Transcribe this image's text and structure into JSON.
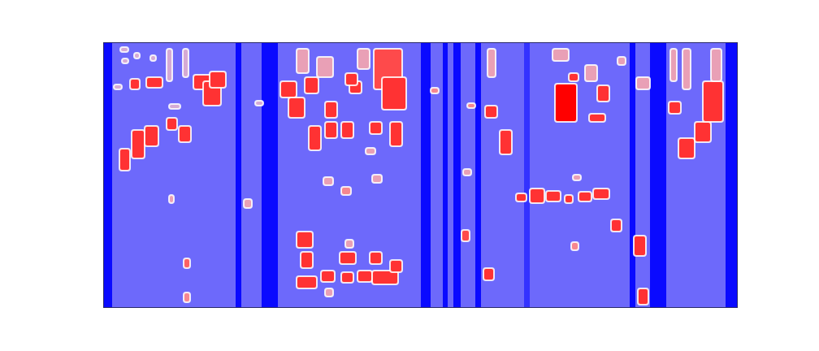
{
  "chart_data": {
    "type": "heatmap",
    "xlim": [
      0,
      78
    ],
    "ylim": [
      0,
      32.6
    ],
    "tick_labels": false,
    "color_range": [
      0,
      1
    ],
    "cells": [
      [
        0,
        78,
        0,
        32.6,
        0.22
      ],
      [
        0,
        1.1,
        0,
        32.6,
        0.02
      ],
      [
        16.3,
        17.0,
        0,
        32.6,
        0.02
      ],
      [
        19.5,
        21.5,
        0,
        32.6,
        0.02
      ],
      [
        39.1,
        40.3,
        0,
        32.6,
        0.02
      ],
      [
        41.8,
        42.4,
        0,
        32.6,
        0.02
      ],
      [
        43.1,
        44.0,
        0,
        32.6,
        0.02
      ],
      [
        45.8,
        46.5,
        0,
        32.6,
        0.02
      ],
      [
        51.8,
        52.5,
        0,
        32.6,
        0.1
      ],
      [
        64.8,
        65.5,
        0,
        32.6,
        0.02
      ],
      [
        67.3,
        69.3,
        0,
        32.6,
        0.02
      ],
      [
        76.6,
        78,
        0,
        32.6,
        0.02
      ],
      [
        11.1,
        13.5,
        26.8,
        28.6,
        0.9
      ],
      [
        12.3,
        14.5,
        24.8,
        27.8,
        0.9
      ],
      [
        13.1,
        15.1,
        27.0,
        29.0,
        0.9
      ],
      [
        3.3,
        4.5,
        26.8,
        28.1,
        0.9
      ],
      [
        5.3,
        7.3,
        27.0,
        28.3,
        0.9
      ],
      [
        2.0,
        3.3,
        16.8,
        19.5,
        0.9
      ],
      [
        3.5,
        5.1,
        18.3,
        21.8,
        0.9
      ],
      [
        5.1,
        6.8,
        19.8,
        22.3,
        0.9
      ],
      [
        7.8,
        9.1,
        21.8,
        23.3,
        0.9
      ],
      [
        9.3,
        10.8,
        20.3,
        22.3,
        0.9
      ],
      [
        2.1,
        3.1,
        31.4,
        32.0,
        0.5
      ],
      [
        2.3,
        3.1,
        30.0,
        30.6,
        0.5
      ],
      [
        3.8,
        4.5,
        30.6,
        31.3,
        0.5
      ],
      [
        5.8,
        6.5,
        30.3,
        31.0,
        0.5
      ],
      [
        7.8,
        8.5,
        27.8,
        31.8,
        0.5
      ],
      [
        9.8,
        10.5,
        28.3,
        31.8,
        0.5
      ],
      [
        8.1,
        8.7,
        12.8,
        13.8,
        0.6
      ],
      [
        9.9,
        10.7,
        4.8,
        6.0,
        0.8
      ],
      [
        9.9,
        10.7,
        0.6,
        1.8,
        0.7
      ],
      [
        17.3,
        18.3,
        12.2,
        13.3,
        0.6
      ],
      [
        18.7,
        19.7,
        24.8,
        25.4,
        0.5
      ],
      [
        8.1,
        9.5,
        24.4,
        25.0,
        0.5
      ],
      [
        1.3,
        2.3,
        26.8,
        27.4,
        0.5
      ],
      [
        21.8,
        23.8,
        25.8,
        27.8,
        0.9
      ],
      [
        22.8,
        24.8,
        23.3,
        25.8,
        0.9
      ],
      [
        24.8,
        26.5,
        26.3,
        28.3,
        0.9
      ],
      [
        23.8,
        25.3,
        28.8,
        31.8,
        0.6
      ],
      [
        26.3,
        28.3,
        28.3,
        30.8,
        0.6
      ],
      [
        27.3,
        28.8,
        23.3,
        25.3,
        0.9
      ],
      [
        25.3,
        26.8,
        19.3,
        22.3,
        0.9
      ],
      [
        27.3,
        28.8,
        20.8,
        22.8,
        0.9
      ],
      [
        29.3,
        30.8,
        20.8,
        22.8,
        0.9
      ],
      [
        30.3,
        31.8,
        26.3,
        27.8,
        0.9
      ],
      [
        33.3,
        36.8,
        26.8,
        31.8,
        0.85
      ],
      [
        34.3,
        37.3,
        24.3,
        28.3,
        0.9
      ],
      [
        35.3,
        36.8,
        19.8,
        22.8,
        0.9
      ],
      [
        32.8,
        34.3,
        21.3,
        22.8,
        0.9
      ],
      [
        29.8,
        31.3,
        27.3,
        28.8,
        0.9
      ],
      [
        31.3,
        32.8,
        29.3,
        31.8,
        0.6
      ],
      [
        27.1,
        28.3,
        15.0,
        16.0,
        0.6
      ],
      [
        29.3,
        30.5,
        13.8,
        14.8,
        0.7
      ],
      [
        33.1,
        34.3,
        15.3,
        16.3,
        0.6
      ],
      [
        32.3,
        33.5,
        18.8,
        19.6,
        0.6
      ],
      [
        23.8,
        25.8,
        7.3,
        9.3,
        0.9
      ],
      [
        24.3,
        25.8,
        4.8,
        6.8,
        0.9
      ],
      [
        23.8,
        26.3,
        2.3,
        3.8,
        0.9
      ],
      [
        26.8,
        28.5,
        3.1,
        4.5,
        0.9
      ],
      [
        29.1,
        31.1,
        5.3,
        6.8,
        0.9
      ],
      [
        29.3,
        30.8,
        3.0,
        4.3,
        0.9
      ],
      [
        31.3,
        33.1,
        3.1,
        4.5,
        0.9
      ],
      [
        32.8,
        34.3,
        5.3,
        6.8,
        0.9
      ],
      [
        33.1,
        36.3,
        2.8,
        4.5,
        0.9
      ],
      [
        35.3,
        36.8,
        4.3,
        5.8,
        0.9
      ],
      [
        29.8,
        30.8,
        7.3,
        8.3,
        0.6
      ],
      [
        27.3,
        28.3,
        1.3,
        2.3,
        0.6
      ],
      [
        40.3,
        41.3,
        26.3,
        27.0,
        0.7
      ],
      [
        44.8,
        45.8,
        24.5,
        25.1,
        0.7
      ],
      [
        44.3,
        45.3,
        16.2,
        17.0,
        0.6
      ],
      [
        44.1,
        45.1,
        8.1,
        9.5,
        0.85
      ],
      [
        47.0,
        48.5,
        23.3,
        24.8,
        0.9
      ],
      [
        48.8,
        50.3,
        18.8,
        21.8,
        0.9
      ],
      [
        47.3,
        48.3,
        28.3,
        31.8,
        0.6
      ],
      [
        55.6,
        58.3,
        22.8,
        27.5,
        1.0
      ],
      [
        57.3,
        58.5,
        27.8,
        28.8,
        0.9
      ],
      [
        59.8,
        61.8,
        22.8,
        23.8,
        0.9
      ],
      [
        60.8,
        62.3,
        25.3,
        27.3,
        0.9
      ],
      [
        63.3,
        64.3,
        29.8,
        30.8,
        0.6
      ],
      [
        55.3,
        57.3,
        30.3,
        31.8,
        0.6
      ],
      [
        50.8,
        52.1,
        13.0,
        14.0,
        0.9
      ],
      [
        52.5,
        54.3,
        12.8,
        14.6,
        0.9
      ],
      [
        54.5,
        56.3,
        13.0,
        14.3,
        0.9
      ],
      [
        56.8,
        57.8,
        12.8,
        13.8,
        0.9
      ],
      [
        58.5,
        60.1,
        13.0,
        14.2,
        0.9
      ],
      [
        60.3,
        62.3,
        13.3,
        14.6,
        0.9
      ],
      [
        57.8,
        58.8,
        15.6,
        16.3,
        0.6
      ],
      [
        62.5,
        63.8,
        9.3,
        10.8,
        0.9
      ],
      [
        57.6,
        58.5,
        7.0,
        8.0,
        0.7
      ],
      [
        46.8,
        48.1,
        3.3,
        4.8,
        0.9
      ],
      [
        65.3,
        66.8,
        6.3,
        8.8,
        0.9
      ],
      [
        65.8,
        67.1,
        0.3,
        2.3,
        0.9
      ],
      [
        65.6,
        67.3,
        26.8,
        28.3,
        0.6
      ],
      [
        59.3,
        60.8,
        27.8,
        29.8,
        0.6
      ],
      [
        70.8,
        72.8,
        18.3,
        20.8,
        0.9
      ],
      [
        72.8,
        74.8,
        20.3,
        22.8,
        0.9
      ],
      [
        73.8,
        76.3,
        22.8,
        27.8,
        0.9
      ],
      [
        69.6,
        71.1,
        23.8,
        25.3,
        0.9
      ],
      [
        71.3,
        72.3,
        26.8,
        31.8,
        0.6
      ],
      [
        74.8,
        76.1,
        27.8,
        31.8,
        0.6
      ],
      [
        69.8,
        70.6,
        27.8,
        31.8,
        0.6
      ]
    ]
  }
}
